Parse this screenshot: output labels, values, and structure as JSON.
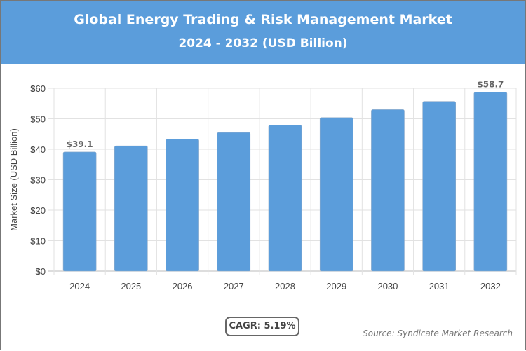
{
  "header": {
    "title": "Global Energy Trading & Risk Management Market",
    "subtitle": "2024 - 2032 (USD Billion)"
  },
  "chart_data": {
    "type": "bar",
    "title": "Global Energy Trading & Risk Management Market",
    "subtitle": "2024 - 2032 (USD Billion)",
    "categories": [
      "2024",
      "2025",
      "2026",
      "2027",
      "2028",
      "2029",
      "2030",
      "2031",
      "2032"
    ],
    "values": [
      39.1,
      41.1,
      43.3,
      45.5,
      47.9,
      50.4,
      53.0,
      55.7,
      58.7
    ],
    "data_labels": {
      "0": "$39.1",
      "8": "$58.7"
    },
    "ylabel": "Market Size (USD Billion)",
    "xlabel": "",
    "ylim": [
      0,
      60
    ],
    "yticks": [
      "$0",
      "$10",
      "$20",
      "$30",
      "$40",
      "$50",
      "$60"
    ],
    "grid": true,
    "bar_color": "#5b9ddb"
  },
  "footer": {
    "cagr": "CAGR: 5.19%",
    "source": "Source: Syndicate Market Research"
  }
}
